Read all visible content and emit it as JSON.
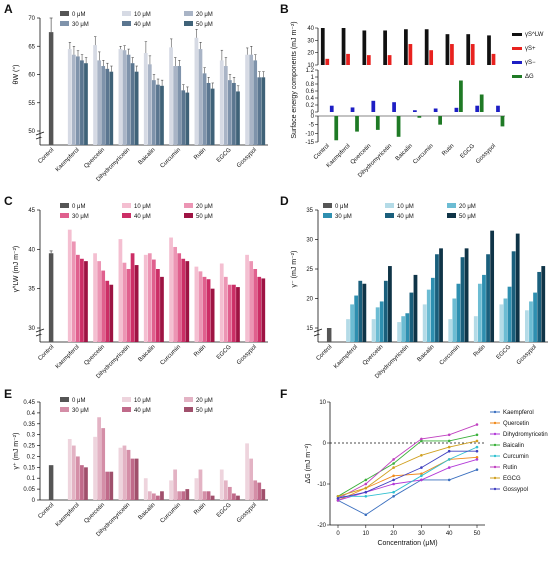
{
  "concentrations": [
    "0 μM",
    "10 μM",
    "20 μM",
    "30 μM",
    "40 μM",
    "50 μM"
  ],
  "compounds": [
    "Control",
    "Kaempferol",
    "Quercetin",
    "Dihydromyricetin",
    "Baicalin",
    "Curcumin",
    "Rutin",
    "EGCG",
    "Gossypol"
  ],
  "colors": {
    "A": [
      "#555555",
      "#d6dae4",
      "#a9b4c6",
      "#7f93ab",
      "#5b7690",
      "#3f6278"
    ],
    "C": [
      "#555555",
      "#f4bfd1",
      "#ec95b4",
      "#e0608e",
      "#cc2e66",
      "#9e1343"
    ],
    "D": [
      "#555555",
      "#b4dbe7",
      "#6cbcd3",
      "#2e8fb0",
      "#1a5f7c",
      "#0f3447"
    ],
    "E": [
      "#555555",
      "#eed4dd",
      "#e3b3c4",
      "#d48ea7",
      "#c06a8a",
      "#a0506c"
    ],
    "B": [
      "#111111",
      "#e8221f",
      "#1d1ec4",
      "#1f7a25"
    ],
    "F": [
      "#3a6fbf",
      "#f08a1c",
      "#b23ad8",
      "#3ab03a",
      "#2fc0d0",
      "#c040c0",
      "#d0a020",
      "#4040c0"
    ]
  },
  "chart_data": [
    {
      "id": "A",
      "panel_label": "A",
      "type": "bar",
      "ylabel": "θW (°)",
      "ylim": [
        50,
        70
      ],
      "yticks": [
        50,
        55,
        60,
        65,
        70
      ],
      "axis_break": "0-50",
      "categories": [
        "Control",
        "Kaempferol",
        "Quercetin",
        "Dihydromyricetin",
        "Baicalin",
        "Curcumin",
        "Rutin",
        "EGCG",
        "Gossypol"
      ],
      "series": [
        {
          "name": "0 μM",
          "values": [
            67.5,
            null,
            null,
            null,
            null,
            null,
            null,
            null,
            null
          ],
          "errors": [
            2.5,
            null,
            null,
            null,
            null,
            null,
            null,
            null,
            null
          ]
        },
        {
          "name": "10 μM",
          "values": [
            null,
            64.5,
            65.2,
            64.5,
            63.8,
            64.8,
            66.5,
            62.5,
            63.5
          ],
          "errors": [
            null,
            1.2,
            1.5,
            0.5,
            2.0,
            1.5,
            1.5,
            1.8,
            1.2
          ]
        },
        {
          "name": "20 μM",
          "values": [
            null,
            63.5,
            62.5,
            64.3,
            61.8,
            61.5,
            64.5,
            61.5,
            63.5
          ],
          "errors": [
            null,
            1.5,
            1.5,
            0.8,
            1.5,
            1.5,
            1.2,
            1.5,
            1.5
          ]
        },
        {
          "name": "30 μM",
          "values": [
            null,
            63.2,
            61.5,
            63.5,
            59.0,
            61.5,
            60.2,
            59.0,
            62.5
          ],
          "errors": [
            null,
            1.0,
            1.0,
            1.0,
            1.0,
            1.0,
            1.0,
            1.0,
            1.0
          ]
        },
        {
          "name": "40 μM",
          "values": [
            null,
            62.5,
            61.0,
            62.0,
            58.2,
            57.2,
            58.5,
            58.5,
            59.5
          ],
          "errors": [
            null,
            1.0,
            1.0,
            1.0,
            1.0,
            1.0,
            1.0,
            1.0,
            1.0
          ]
        },
        {
          "name": "50 μM",
          "values": [
            null,
            62.0,
            60.5,
            60.5,
            58.0,
            56.8,
            57.5,
            57.0,
            59.5
          ],
          "errors": [
            null,
            1.0,
            1.0,
            1.0,
            1.0,
            1.0,
            1.0,
            1.0,
            1.0
          ]
        }
      ]
    },
    {
      "id": "B",
      "panel_label": "B",
      "type": "bar",
      "ylabel": "Surface energy components (mJ m⁻²)",
      "categories": [
        "Control",
        "Kaempferol",
        "Quercetin",
        "Dihydromyricetin",
        "Baicalin",
        "Curcumin",
        "Rutin",
        "EGCG",
        "Gossypol"
      ],
      "top_ylim": [
        10,
        40
      ],
      "top_yticks": [
        10,
        20,
        30,
        40
      ],
      "mid_ylim": [
        0,
        1.2
      ],
      "mid_yticks": [
        0,
        0.2,
        0.4,
        0.6,
        0.8,
        1.0,
        1.2
      ],
      "bottom_ylim": [
        -15,
        0
      ],
      "bottom_yticks": [
        -15,
        -10,
        -5,
        0
      ],
      "series": [
        {
          "name": "γS^LW",
          "values": [
            40,
            40,
            38,
            38,
            39,
            39,
            35,
            35,
            34
          ],
          "errors": [
            0.5,
            0.8,
            0.8,
            0.5,
            0.5,
            0.5,
            0.5,
            0.5,
            0.5
          ]
        },
        {
          "name": "γS+",
          "values": [
            15,
            19,
            18,
            18,
            27,
            22,
            27,
            27,
            19
          ],
          "errors": [
            0.5,
            0.5,
            0.5,
            0.5,
            0.5,
            1.5,
            0.5,
            0.5,
            0.5
          ]
        },
        {
          "name": "γS−",
          "values": [
            0.18,
            0.13,
            0.32,
            0.28,
            0.05,
            0.1,
            0.12,
            0.18,
            0.18
          ],
          "errors": [
            0.02,
            0.02,
            0.05,
            0.03,
            0.02,
            0.02,
            0.02,
            0.02,
            0.02
          ]
        },
        {
          "name": "ΔG",
          "values": [
            -14,
            -9,
            -8,
            -12,
            -1,
            -5,
            0.9,
            0.5,
            -6
          ],
          "errors": [
            0.8,
            0.8,
            0.8,
            0.8,
            0.3,
            0.8,
            0.5,
            0.3,
            0.8
          ]
        }
      ]
    },
    {
      "id": "C",
      "panel_label": "C",
      "type": "bar",
      "ylabel": "γ^LW (mJ m⁻²)",
      "ylim": [
        30,
        45
      ],
      "yticks": [
        30,
        35,
        40,
        45
      ],
      "axis_break": "0-30",
      "categories": [
        "Control",
        "Kaempferol",
        "Quercetin",
        "Dihydromyricetin",
        "Baicalin",
        "Curcumin",
        "Rutin",
        "EGCG",
        "Gossypol"
      ],
      "series": [
        {
          "name": "0 μM",
          "values": [
            39.5,
            null,
            null,
            null,
            null,
            null,
            null,
            null,
            null
          ],
          "errors": [
            0.3,
            null,
            null,
            null,
            null,
            null,
            null,
            null,
            null
          ]
        },
        {
          "name": "10 μM",
          "values": [
            null,
            42.5,
            39.5,
            41.3,
            39.3,
            41.5,
            37.8,
            38.2,
            39.3
          ]
        },
        {
          "name": "20 μM",
          "values": [
            null,
            41.0,
            38.5,
            38.3,
            39.5,
            40.3,
            37.2,
            36.5,
            38.5
          ]
        },
        {
          "name": "30 μM",
          "values": [
            null,
            39.3,
            37.3,
            37.5,
            38.7,
            39.5,
            36.5,
            35.5,
            37.5
          ]
        },
        {
          "name": "40 μM",
          "values": [
            null,
            38.8,
            36.0,
            39.5,
            37.5,
            38.8,
            36.2,
            35.5,
            36.5
          ]
        },
        {
          "name": "50 μM",
          "values": [
            null,
            38.5,
            35.5,
            38.0,
            36.5,
            38.5,
            35.0,
            35.2,
            36.3
          ]
        }
      ]
    },
    {
      "id": "D",
      "panel_label": "D",
      "type": "bar",
      "ylabel": "γ⁻ (mJ m⁻²)",
      "ylim": [
        15,
        35
      ],
      "yticks": [
        15,
        20,
        25,
        30,
        35
      ],
      "axis_break": "0-15",
      "categories": [
        "Control",
        "Kaempferol",
        "Quercetin",
        "Dihydromyricetin",
        "Baicalin",
        "Curcumin",
        "Rutin",
        "EGCG",
        "Gossypol"
      ],
      "series": [
        {
          "name": "0 μM",
          "values": [
            15.0,
            null,
            null,
            null,
            null,
            null,
            null,
            null,
            null
          ]
        },
        {
          "name": "10 μM",
          "values": [
            null,
            16.5,
            16.5,
            16.0,
            19.0,
            16.5,
            17.0,
            19.0,
            18.0
          ]
        },
        {
          "name": "20 μM",
          "values": [
            null,
            19.0,
            18.5,
            17.0,
            21.5,
            20.0,
            22.5,
            20.0,
            19.5
          ]
        },
        {
          "name": "30 μM",
          "values": [
            null,
            20.5,
            19.5,
            17.5,
            23.5,
            22.5,
            24.0,
            22.0,
            21.0
          ]
        },
        {
          "name": "40 μM",
          "values": [
            null,
            23.0,
            23.0,
            21.0,
            27.5,
            27.0,
            27.5,
            28.0,
            24.5
          ]
        },
        {
          "name": "50 μM",
          "values": [
            null,
            22.5,
            25.5,
            24.0,
            28.5,
            28.5,
            31.5,
            31.0,
            25.5
          ]
        }
      ]
    },
    {
      "id": "E",
      "panel_label": "E",
      "type": "bar",
      "ylabel": "γ⁺ (mJ m⁻²)",
      "ylim": [
        0,
        0.45
      ],
      "yticks": [
        0.0,
        0.05,
        0.1,
        0.15,
        0.2,
        0.25,
        0.3,
        0.35,
        0.4,
        0.45
      ],
      "categories": [
        "Control",
        "Kaempferol",
        "Quercetin",
        "Dihydromyricetin",
        "Baicalin",
        "Curcumin",
        "Rutin",
        "EGCG",
        "Gossypol"
      ],
      "series": [
        {
          "name": "0 μM",
          "values": [
            0.16,
            null,
            null,
            null,
            null,
            null,
            null,
            null,
            null
          ]
        },
        {
          "name": "10 μM",
          "values": [
            null,
            0.28,
            0.29,
            0.24,
            0.1,
            0.09,
            0.1,
            0.14,
            0.26
          ]
        },
        {
          "name": "20 μM",
          "values": [
            null,
            0.25,
            0.38,
            0.25,
            0.04,
            0.14,
            0.14,
            0.09,
            0.19
          ]
        },
        {
          "name": "30 μM",
          "values": [
            null,
            0.2,
            0.33,
            0.23,
            0.03,
            0.04,
            0.04,
            0.06,
            0.09
          ]
        },
        {
          "name": "40 μM",
          "values": [
            null,
            0.16,
            0.13,
            0.19,
            0.02,
            0.04,
            0.04,
            0.03,
            0.08
          ]
        },
        {
          "name": "50 μM",
          "values": [
            null,
            0.15,
            0.13,
            0.19,
            0.04,
            0.05,
            0.02,
            0.02,
            0.05
          ]
        }
      ]
    },
    {
      "id": "F",
      "panel_label": "F",
      "type": "line",
      "xlabel": "Concentration (μM)",
      "ylabel": "ΔG (mJ m⁻²)",
      "x": [
        0,
        10,
        20,
        30,
        40,
        50
      ],
      "xlim": [
        0,
        50
      ],
      "ylim": [
        -20,
        10
      ],
      "yticks": [
        -20,
        -10,
        0,
        10
      ],
      "reference_line": 0,
      "series": [
        {
          "name": "Kaempferol",
          "values": [
            -14,
            -17.5,
            -13,
            -9,
            -9,
            -6.5
          ]
        },
        {
          "name": "Quercetin",
          "values": [
            -14,
            -11,
            -8,
            -7.5,
            -4,
            -3.5
          ]
        },
        {
          "name": "Dihydromyricetin",
          "values": [
            -14,
            -12,
            -10,
            -9,
            -6,
            -4
          ]
        },
        {
          "name": "Baicalin",
          "values": [
            -13,
            -9,
            -5,
            0.5,
            0.5,
            2
          ]
        },
        {
          "name": "Curcumin",
          "values": [
            -13,
            -13,
            -12,
            -8,
            -4,
            -1
          ]
        },
        {
          "name": "Rutin",
          "values": [
            -13.5,
            -10,
            -4,
            1,
            2,
            4.5
          ]
        },
        {
          "name": "EGCG",
          "values": [
            -13,
            -11,
            -6,
            -3,
            -1,
            0.5
          ]
        },
        {
          "name": "Gossypol",
          "values": [
            -13.5,
            -12,
            -9,
            -6,
            -2,
            -2
          ]
        }
      ]
    }
  ]
}
